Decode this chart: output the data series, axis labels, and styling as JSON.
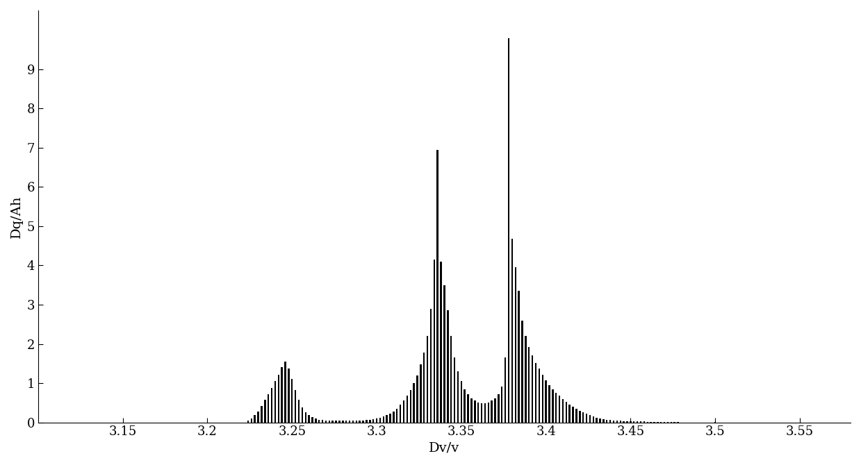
{
  "xlabel": "Dv/v",
  "ylabel": "Dq/Ah",
  "xlim": [
    3.1,
    3.58
  ],
  "ylim": [
    0,
    10.5
  ],
  "xticks": [
    3.15,
    3.2,
    3.25,
    3.3,
    3.35,
    3.4,
    3.45,
    3.5,
    3.55
  ],
  "yticks": [
    0,
    1,
    2,
    3,
    4,
    5,
    6,
    7,
    8,
    9
  ],
  "bar_color": "#000000",
  "background_color": "#ffffff",
  "bar_width": 0.001,
  "bars": [
    [
      3.1,
      0.0
    ],
    [
      3.102,
      0.0
    ],
    [
      3.104,
      0.0
    ],
    [
      3.106,
      0.0
    ],
    [
      3.108,
      0.0
    ],
    [
      3.11,
      0.0
    ],
    [
      3.112,
      0.0
    ],
    [
      3.114,
      0.0
    ],
    [
      3.116,
      0.0
    ],
    [
      3.118,
      0.0
    ],
    [
      3.12,
      0.0
    ],
    [
      3.122,
      0.0
    ],
    [
      3.124,
      0.0
    ],
    [
      3.126,
      0.0
    ],
    [
      3.128,
      0.0
    ],
    [
      3.13,
      0.0
    ],
    [
      3.132,
      0.0
    ],
    [
      3.134,
      0.0
    ],
    [
      3.136,
      0.0
    ],
    [
      3.138,
      0.0
    ],
    [
      3.14,
      0.0
    ],
    [
      3.142,
      0.0
    ],
    [
      3.144,
      0.0
    ],
    [
      3.146,
      0.0
    ],
    [
      3.148,
      0.0
    ],
    [
      3.15,
      0.0
    ],
    [
      3.152,
      0.0
    ],
    [
      3.154,
      0.0
    ],
    [
      3.156,
      0.0
    ],
    [
      3.158,
      0.0
    ],
    [
      3.16,
      0.0
    ],
    [
      3.162,
      0.0
    ],
    [
      3.164,
      0.0
    ],
    [
      3.166,
      0.0
    ],
    [
      3.168,
      0.0
    ],
    [
      3.17,
      0.0
    ],
    [
      3.172,
      0.0
    ],
    [
      3.174,
      0.0
    ],
    [
      3.176,
      0.0
    ],
    [
      3.178,
      0.0
    ],
    [
      3.18,
      0.0
    ],
    [
      3.182,
      0.0
    ],
    [
      3.184,
      0.0
    ],
    [
      3.186,
      0.0
    ],
    [
      3.188,
      0.0
    ],
    [
      3.19,
      0.0
    ],
    [
      3.192,
      0.0
    ],
    [
      3.194,
      0.0
    ],
    [
      3.196,
      0.0
    ],
    [
      3.198,
      0.0
    ],
    [
      3.2,
      0.0
    ],
    [
      3.202,
      0.0
    ],
    [
      3.204,
      0.0
    ],
    [
      3.206,
      0.0
    ],
    [
      3.208,
      0.0
    ],
    [
      3.21,
      0.0
    ],
    [
      3.212,
      0.0
    ],
    [
      3.214,
      0.0
    ],
    [
      3.216,
      0.0
    ],
    [
      3.218,
      0.0
    ],
    [
      3.22,
      0.0
    ],
    [
      3.222,
      0.0
    ],
    [
      3.224,
      0.05
    ],
    [
      3.226,
      0.1
    ],
    [
      3.228,
      0.18
    ],
    [
      3.23,
      0.28
    ],
    [
      3.232,
      0.42
    ],
    [
      3.234,
      0.58
    ],
    [
      3.236,
      0.72
    ],
    [
      3.238,
      0.88
    ],
    [
      3.24,
      1.05
    ],
    [
      3.242,
      1.22
    ],
    [
      3.244,
      1.4
    ],
    [
      3.246,
      1.55
    ],
    [
      3.248,
      1.38
    ],
    [
      3.25,
      1.1
    ],
    [
      3.252,
      0.82
    ],
    [
      3.254,
      0.58
    ],
    [
      3.256,
      0.38
    ],
    [
      3.258,
      0.25
    ],
    [
      3.26,
      0.18
    ],
    [
      3.262,
      0.13
    ],
    [
      3.264,
      0.1
    ],
    [
      3.266,
      0.07
    ],
    [
      3.268,
      0.06
    ],
    [
      3.27,
      0.05
    ],
    [
      3.272,
      0.05
    ],
    [
      3.274,
      0.05
    ],
    [
      3.276,
      0.05
    ],
    [
      3.278,
      0.05
    ],
    [
      3.28,
      0.05
    ],
    [
      3.282,
      0.05
    ],
    [
      3.284,
      0.05
    ],
    [
      3.286,
      0.05
    ],
    [
      3.288,
      0.05
    ],
    [
      3.29,
      0.05
    ],
    [
      3.292,
      0.05
    ],
    [
      3.294,
      0.06
    ],
    [
      3.296,
      0.07
    ],
    [
      3.298,
      0.08
    ],
    [
      3.3,
      0.1
    ],
    [
      3.302,
      0.12
    ],
    [
      3.304,
      0.15
    ],
    [
      3.306,
      0.18
    ],
    [
      3.308,
      0.22
    ],
    [
      3.31,
      0.28
    ],
    [
      3.312,
      0.35
    ],
    [
      3.314,
      0.45
    ],
    [
      3.316,
      0.55
    ],
    [
      3.318,
      0.68
    ],
    [
      3.32,
      0.82
    ],
    [
      3.322,
      1.0
    ],
    [
      3.324,
      1.2
    ],
    [
      3.326,
      1.48
    ],
    [
      3.328,
      1.78
    ],
    [
      3.33,
      2.2
    ],
    [
      3.332,
      2.9
    ],
    [
      3.334,
      4.15
    ],
    [
      3.336,
      6.95
    ],
    [
      3.338,
      4.1
    ],
    [
      3.34,
      3.5
    ],
    [
      3.342,
      2.85
    ],
    [
      3.344,
      2.2
    ],
    [
      3.346,
      1.65
    ],
    [
      3.348,
      1.3
    ],
    [
      3.35,
      1.05
    ],
    [
      3.352,
      0.85
    ],
    [
      3.354,
      0.72
    ],
    [
      3.356,
      0.62
    ],
    [
      3.358,
      0.55
    ],
    [
      3.36,
      0.5
    ],
    [
      3.362,
      0.48
    ],
    [
      3.364,
      0.48
    ],
    [
      3.366,
      0.5
    ],
    [
      3.368,
      0.55
    ],
    [
      3.37,
      0.62
    ],
    [
      3.372,
      0.72
    ],
    [
      3.374,
      0.92
    ],
    [
      3.376,
      1.65
    ],
    [
      3.378,
      9.8
    ],
    [
      3.38,
      4.68
    ],
    [
      3.382,
      3.95
    ],
    [
      3.384,
      3.35
    ],
    [
      3.386,
      2.6
    ],
    [
      3.388,
      2.2
    ],
    [
      3.39,
      1.92
    ],
    [
      3.392,
      1.7
    ],
    [
      3.394,
      1.52
    ],
    [
      3.396,
      1.38
    ],
    [
      3.398,
      1.22
    ],
    [
      3.4,
      1.08
    ],
    [
      3.402,
      0.95
    ],
    [
      3.404,
      0.85
    ],
    [
      3.406,
      0.75
    ],
    [
      3.408,
      0.68
    ],
    [
      3.41,
      0.6
    ],
    [
      3.412,
      0.52
    ],
    [
      3.414,
      0.46
    ],
    [
      3.416,
      0.4
    ],
    [
      3.418,
      0.35
    ],
    [
      3.42,
      0.3
    ],
    [
      3.422,
      0.26
    ],
    [
      3.424,
      0.22
    ],
    [
      3.426,
      0.18
    ],
    [
      3.428,
      0.15
    ],
    [
      3.43,
      0.12
    ],
    [
      3.432,
      0.1
    ],
    [
      3.434,
      0.08
    ],
    [
      3.436,
      0.07
    ],
    [
      3.438,
      0.06
    ],
    [
      3.44,
      0.05
    ],
    [
      3.442,
      0.04
    ],
    [
      3.444,
      0.04
    ],
    [
      3.446,
      0.03
    ],
    [
      3.448,
      0.03
    ],
    [
      3.45,
      0.02
    ],
    [
      3.452,
      0.02
    ],
    [
      3.454,
      0.02
    ],
    [
      3.456,
      0.02
    ],
    [
      3.458,
      0.02
    ],
    [
      3.46,
      0.01
    ],
    [
      3.462,
      0.01
    ],
    [
      3.464,
      0.01
    ],
    [
      3.466,
      0.01
    ],
    [
      3.468,
      0.01
    ],
    [
      3.47,
      0.01
    ],
    [
      3.472,
      0.01
    ],
    [
      3.474,
      0.01
    ],
    [
      3.476,
      0.01
    ],
    [
      3.478,
      0.01
    ],
    [
      3.48,
      0.0
    ],
    [
      3.482,
      0.0
    ],
    [
      3.484,
      0.0
    ],
    [
      3.486,
      0.0
    ],
    [
      3.488,
      0.0
    ],
    [
      3.49,
      0.0
    ],
    [
      3.492,
      0.0
    ],
    [
      3.494,
      0.0
    ],
    [
      3.496,
      0.0
    ],
    [
      3.498,
      0.0
    ],
    [
      3.5,
      0.01
    ],
    [
      3.502,
      0.0
    ],
    [
      3.504,
      0.0
    ],
    [
      3.506,
      0.0
    ],
    [
      3.508,
      0.0
    ],
    [
      3.51,
      0.0
    ],
    [
      3.512,
      0.0
    ],
    [
      3.514,
      0.0
    ],
    [
      3.516,
      0.0
    ],
    [
      3.518,
      0.0
    ],
    [
      3.52,
      0.0
    ],
    [
      3.522,
      0.0
    ],
    [
      3.524,
      0.0
    ],
    [
      3.526,
      0.0
    ],
    [
      3.528,
      0.0
    ],
    [
      3.53,
      0.0
    ],
    [
      3.532,
      0.0
    ],
    [
      3.534,
      0.0
    ],
    [
      3.536,
      0.0
    ],
    [
      3.538,
      0.0
    ],
    [
      3.54,
      0.0
    ],
    [
      3.542,
      0.0
    ],
    [
      3.544,
      0.0
    ],
    [
      3.546,
      0.0
    ],
    [
      3.548,
      0.0
    ],
    [
      3.55,
      0.0
    ],
    [
      3.552,
      0.0
    ],
    [
      3.554,
      0.0
    ],
    [
      3.556,
      0.0
    ],
    [
      3.558,
      0.0
    ]
  ]
}
